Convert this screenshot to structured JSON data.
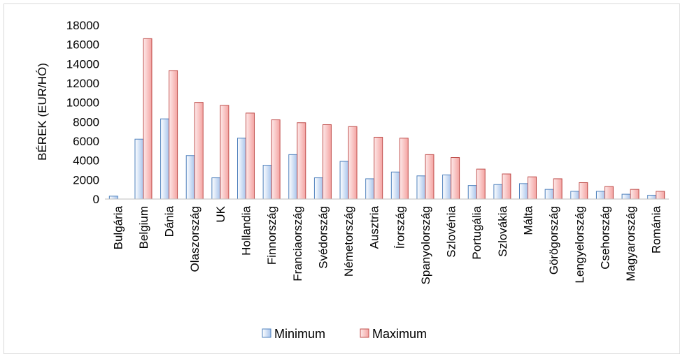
{
  "chart_data": {
    "type": "bar",
    "title": "",
    "xlabel": "",
    "ylabel": "BÉREK (EUR/HÓ)",
    "ylim": [
      0,
      18000
    ],
    "yticks": [
      0,
      2000,
      4000,
      6000,
      8000,
      10000,
      12000,
      14000,
      16000,
      18000
    ],
    "grid": false,
    "legend_position": "bottom",
    "categories": [
      "Bulgária",
      "Belgium",
      "Dánia",
      "Olaszország",
      "UK",
      "Hollandia",
      "Finnország",
      "Franciaország",
      "Svédország",
      "Németország",
      "Ausztria",
      "Írország",
      "Spanyolország",
      "Szlovénia",
      "Portugália",
      "Szlovákia",
      "Málta",
      "Görögország",
      "Lengyelország",
      "Csehország",
      "Magyarország",
      "Románia"
    ],
    "series": [
      {
        "name": "Minimum",
        "color": "#4f81bd",
        "fill_light": "#ffffff",
        "fill_dark": "#a7c4ec",
        "values": [
          300,
          6200,
          8300,
          4500,
          2200,
          6300,
          3500,
          4600,
          2200,
          3900,
          2100,
          2800,
          2400,
          2500,
          1400,
          1500,
          1600,
          1000,
          800,
          800,
          500,
          400
        ]
      },
      {
        "name": "Maximum",
        "color": "#c0504d",
        "fill_light": "#fde9e9",
        "fill_dark": "#f4a4a2",
        "values": [
          null,
          16600,
          13300,
          10000,
          9700,
          8900,
          8200,
          7900,
          7700,
          7500,
          6400,
          6300,
          4600,
          4300,
          3100,
          2600,
          2300,
          2100,
          1700,
          1300,
          1000,
          800
        ]
      }
    ]
  }
}
